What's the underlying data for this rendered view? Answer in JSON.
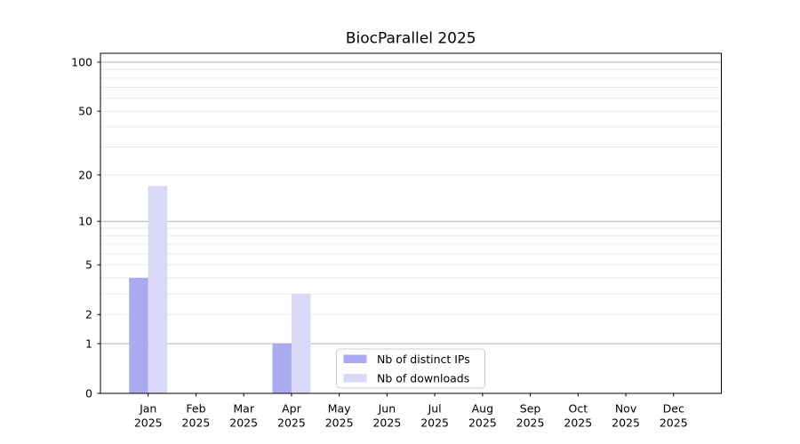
{
  "figure": {
    "title": "BiocParallel 2025"
  },
  "chart_data": {
    "type": "bar",
    "title": "BiocParallel 2025",
    "x_tick_year": "2025",
    "categories": [
      "Jan",
      "Feb",
      "Mar",
      "Apr",
      "May",
      "Jun",
      "Jul",
      "Aug",
      "Sep",
      "Oct",
      "Nov",
      "Dec"
    ],
    "series": [
      {
        "name": "Nb of distinct IPs",
        "color": "#aaaaee",
        "values": [
          4,
          0,
          0,
          1,
          0,
          0,
          0,
          0,
          0,
          0,
          0,
          0
        ]
      },
      {
        "name": "Nb of downloads",
        "color": "#d9d9f7",
        "values": [
          17,
          0,
          0,
          3,
          0,
          0,
          0,
          0,
          0,
          0,
          0,
          0
        ]
      }
    ],
    "yscale": "log1p",
    "ylim": [
      0,
      113
    ],
    "ytick_labels": [
      0,
      1,
      2,
      5,
      10,
      20,
      50,
      100
    ],
    "y_major_grid": [
      1,
      10,
      100
    ],
    "y_minor_grid": [
      2,
      3,
      4,
      5,
      6,
      7,
      8,
      9,
      20,
      30,
      40,
      50,
      60,
      70,
      80,
      90
    ],
    "grid": true,
    "legend": {
      "position": "lower center"
    }
  },
  "colors": {
    "bar_distinct_ips": "#aaaaee",
    "bar_downloads": "#d9d9f7",
    "grid_major": "#b4b4b4",
    "grid_minor": "#e9e9e9",
    "spine": "#000000",
    "tick_text": "#000000",
    "legend_border": "#cccccc",
    "legend_bg": "#ffffff"
  }
}
